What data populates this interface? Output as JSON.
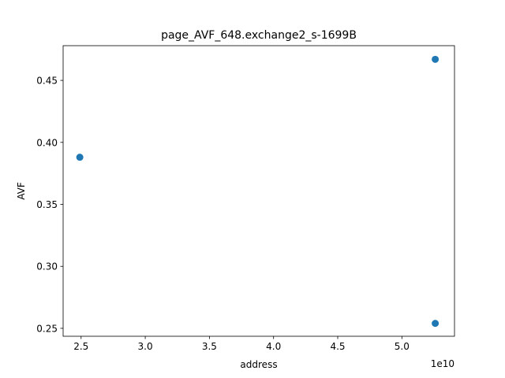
{
  "chart_data": {
    "type": "scatter",
    "title": "page_AVF_648.exchange2_s-1699B",
    "xlabel": "address",
    "ylabel": "AVF",
    "x_offset_label": "1e10",
    "x_scale": 10000000000,
    "xlim": [
      23600000000.0,
      54100000000.0
    ],
    "ylim": [
      0.2436,
      0.478
    ],
    "xticks": [
      25000000000,
      30000000000,
      35000000000,
      40000000000,
      45000000000,
      50000000000
    ],
    "xtick_labels": [
      "2.5",
      "3.0",
      "3.5",
      "4.0",
      "4.5",
      "5.0"
    ],
    "yticks": [
      0.25,
      0.3,
      0.35,
      0.4,
      0.45
    ],
    "ytick_labels": [
      "0.25",
      "0.30",
      "0.35",
      "0.40",
      "0.45"
    ],
    "grid": false,
    "series": [
      {
        "color": "#1f77b4",
        "points": [
          {
            "x": 24900000000,
            "y": 0.388
          },
          {
            "x": 52600000000,
            "y": 0.467
          },
          {
            "x": 52600000000,
            "y": 0.254
          }
        ]
      }
    ]
  }
}
